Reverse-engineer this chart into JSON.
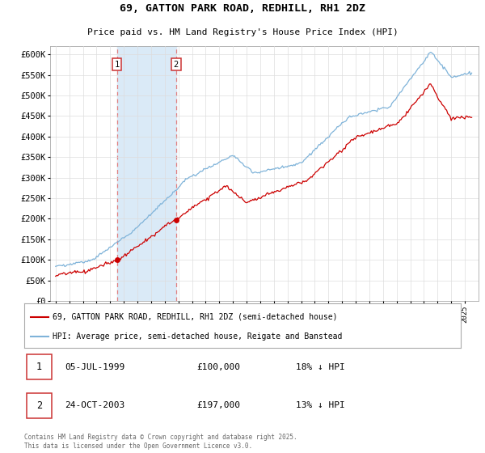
{
  "title_line1": "69, GATTON PARK ROAD, REDHILL, RH1 2DZ",
  "title_line2": "Price paid vs. HM Land Registry's House Price Index (HPI)",
  "ylim": [
    0,
    620000
  ],
  "yticks": [
    0,
    50000,
    100000,
    150000,
    200000,
    250000,
    300000,
    350000,
    400000,
    450000,
    500000,
    550000,
    600000
  ],
  "ytick_labels": [
    "£0",
    "£50K",
    "£100K",
    "£150K",
    "£200K",
    "£250K",
    "£300K",
    "£350K",
    "£400K",
    "£450K",
    "£500K",
    "£550K",
    "£600K"
  ],
  "legend_line1": "69, GATTON PARK ROAD, REDHILL, RH1 2DZ (semi-detached house)",
  "legend_line2": "HPI: Average price, semi-detached house, Reigate and Banstead",
  "hpi_color": "#7fb3d9",
  "price_color": "#cc0000",
  "transaction1_date": "05-JUL-1999",
  "transaction1_price": "£100,000",
  "transaction1_hpi": "18% ↓ HPI",
  "transaction2_date": "24-OCT-2003",
  "transaction2_price": "£197,000",
  "transaction2_hpi": "13% ↓ HPI",
  "footnote": "Contains HM Land Registry data © Crown copyright and database right 2025.\nThis data is licensed under the Open Government Licence v3.0.",
  "marker_color": "#cc0000",
  "shaded_region_color": "#daeaf7",
  "dashed_line_color": "#e08080",
  "background_color": "#ffffff",
  "grid_color": "#dddddd"
}
